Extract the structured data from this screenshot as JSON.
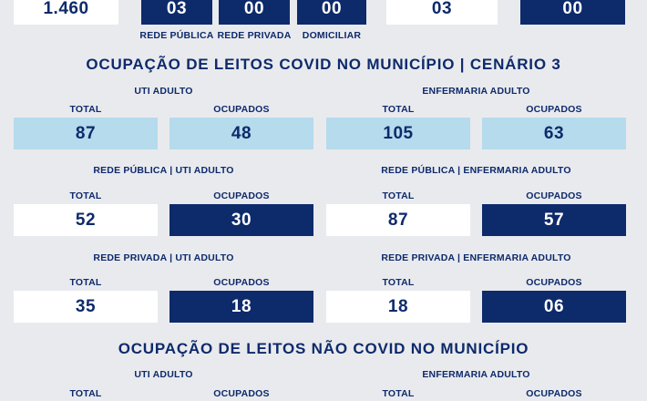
{
  "top": {
    "left_value": "1.460",
    "publica_value": "03",
    "privada_value": "00",
    "domiciliar_value": "00",
    "right_value1": "03",
    "right_value2": "00",
    "labels": {
      "publica": "REDE PÚBLICA",
      "privada": "REDE PRIVADA",
      "domiciliar": "DOMICILIAR"
    }
  },
  "covid": {
    "heading": "OCUPAÇÃO DE LEITOS COVID NO MUNICÍPIO | CENÁRIO  3",
    "col_total": "TOTAL",
    "col_ocupados": "OCUPADOS",
    "uti_adulto": {
      "title": "UTI ADULTO",
      "total": "87",
      "ocupados": "48"
    },
    "enf_adulto": {
      "title": "ENFERMARIA ADULTO",
      "total": "105",
      "ocupados": "63"
    },
    "pub_uti": {
      "title": "REDE PÚBLICA | UTI ADULTO",
      "total": "52",
      "ocupados": "30"
    },
    "pub_enf": {
      "title": "REDE PÚBLICA | ENFERMARIA ADULTO",
      "total": "87",
      "ocupados": "57"
    },
    "priv_uti": {
      "title": "REDE PRIVADA | UTI ADULTO",
      "total": "35",
      "ocupados": "18"
    },
    "priv_enf": {
      "title": "REDE PRIVADA | ENFERMARIA ADULTO",
      "total": "18",
      "ocupados": "06"
    }
  },
  "naocovid": {
    "heading": "OCUPAÇÃO DE LEITOS NÃO COVID NO MUNICÍPIO",
    "uti_title": "UTI ADULTO",
    "enf_title": "ENFERMARIA ADULTO",
    "col_total": "TOTAL",
    "col_ocupados": "OCUPADOS"
  },
  "colors": {
    "navy": "#0d2a6b",
    "light_blue": "#b5dbec",
    "white": "#ffffff",
    "background": "#e9eaee"
  }
}
